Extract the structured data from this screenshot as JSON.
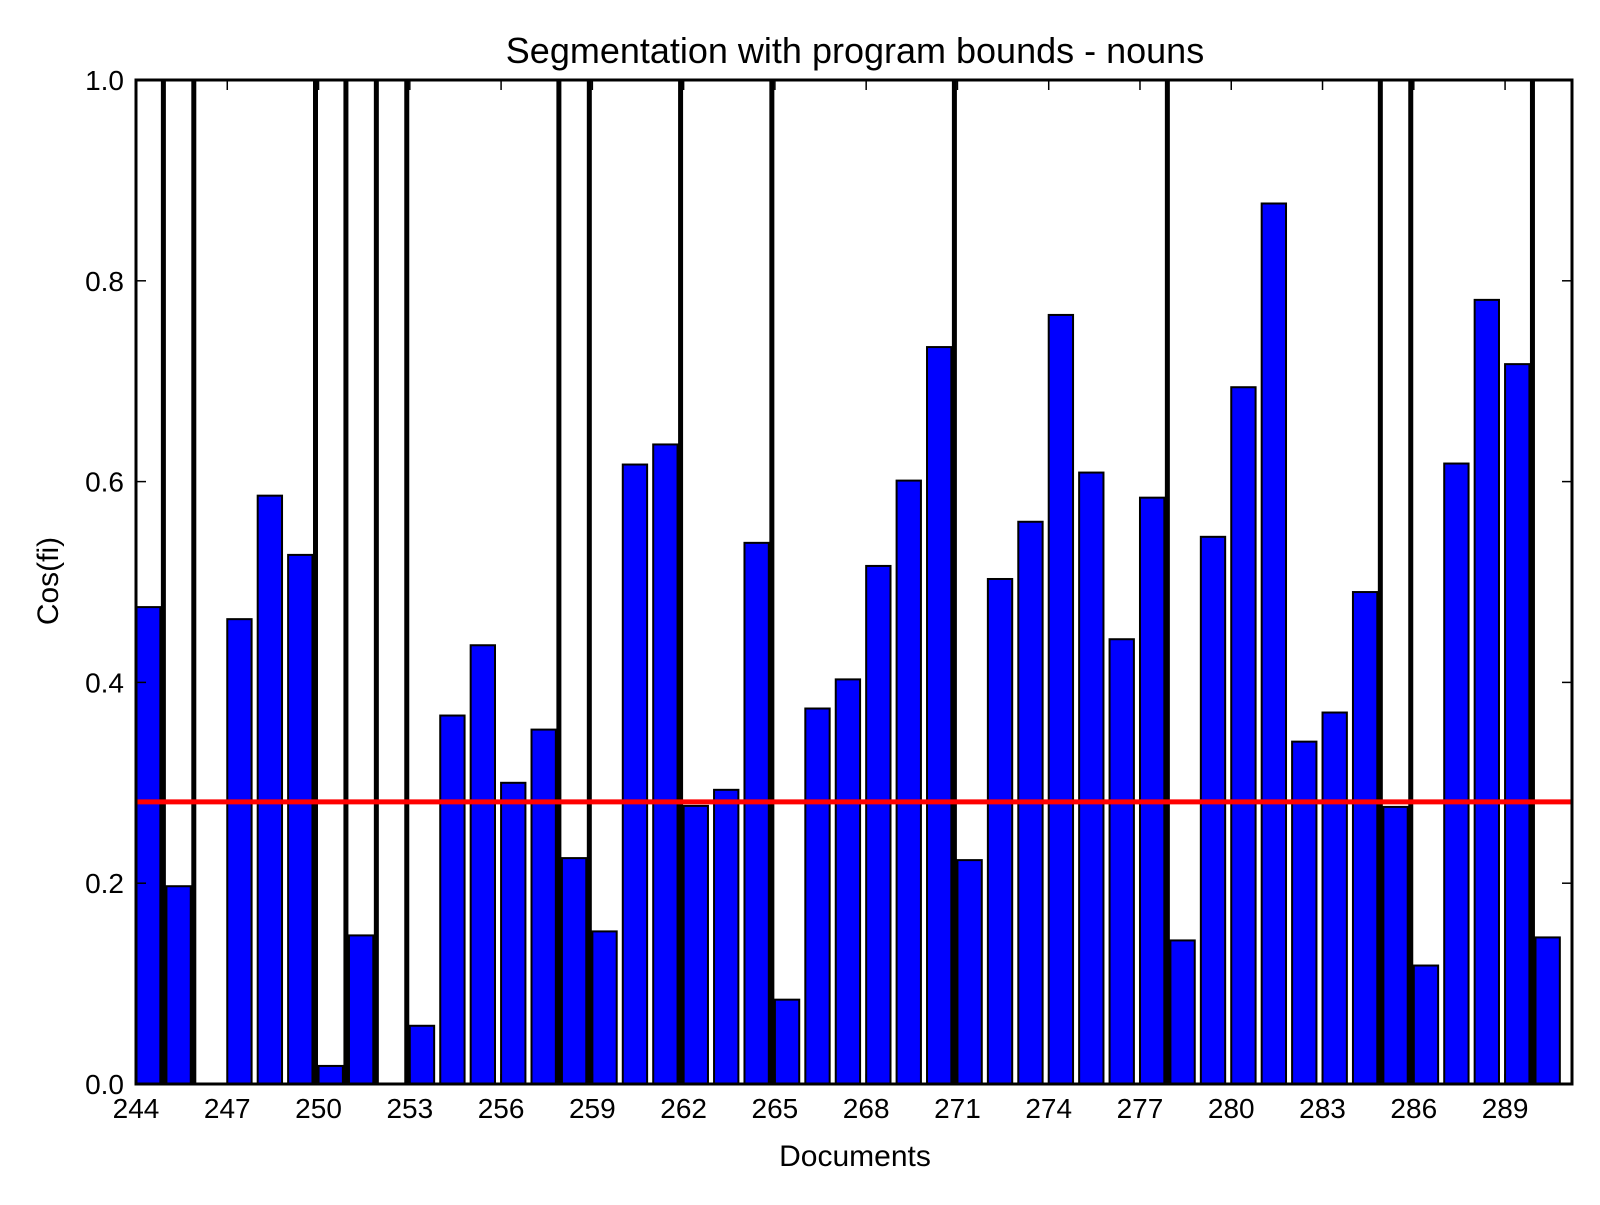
{
  "chart_data": {
    "type": "bar",
    "title": "Segmentation with program bounds - nouns",
    "xlabel": "Documents",
    "ylabel": "Cos(fi)",
    "xlim": [
      244,
      291.2
    ],
    "ylim": [
      0.0,
      1.0
    ],
    "grid": false,
    "legend": "none",
    "colors": {
      "bar_fill": "#0000ff",
      "bar_edge": "#000000",
      "threshold_line": "#ff0000",
      "boundary_line": "#000000",
      "axes_edge": "#000000",
      "background": "#ffffff"
    },
    "y_ticks": [
      {
        "value": 0.0,
        "label": "0.0"
      },
      {
        "value": 0.2,
        "label": "0.2"
      },
      {
        "value": 0.4,
        "label": "0.4"
      },
      {
        "value": 0.6,
        "label": "0.6"
      },
      {
        "value": 0.8,
        "label": "0.8"
      },
      {
        "value": 1.0,
        "label": "1.0"
      }
    ],
    "x_ticks": [
      {
        "value": 244,
        "label": "244"
      },
      {
        "value": 247,
        "label": "247"
      },
      {
        "value": 250,
        "label": "250"
      },
      {
        "value": 253,
        "label": "253"
      },
      {
        "value": 256,
        "label": "256"
      },
      {
        "value": 259,
        "label": "259"
      },
      {
        "value": 262,
        "label": "262"
      },
      {
        "value": 265,
        "label": "265"
      },
      {
        "value": 268,
        "label": "268"
      },
      {
        "value": 271,
        "label": "271"
      },
      {
        "value": 274,
        "label": "274"
      },
      {
        "value": 277,
        "label": "277"
      },
      {
        "value": 280,
        "label": "280"
      },
      {
        "value": 283,
        "label": "283"
      },
      {
        "value": 286,
        "label": "286"
      },
      {
        "value": 289,
        "label": "289"
      }
    ],
    "documents": [
      244,
      245,
      246,
      247,
      248,
      249,
      250,
      251,
      252,
      253,
      254,
      255,
      256,
      257,
      258,
      259,
      260,
      261,
      262,
      263,
      264,
      265,
      266,
      267,
      268,
      269,
      270,
      271,
      272,
      273,
      274,
      275,
      276,
      277,
      278,
      279,
      280,
      281,
      282,
      283,
      284,
      285,
      286,
      287,
      288,
      289,
      290,
      291
    ],
    "values": [
      0.475,
      0.197,
      0.0,
      0.463,
      0.586,
      0.527,
      0.018,
      0.148,
      0.0,
      0.058,
      0.367,
      0.437,
      0.3,
      0.353,
      0.225,
      0.152,
      0.617,
      0.637,
      0.277,
      0.293,
      0.539,
      0.084,
      0.374,
      0.403,
      0.516,
      0.601,
      0.734,
      0.223,
      0.503,
      0.56,
      0.766,
      0.609,
      0.443,
      0.584,
      0.143,
      0.545,
      0.694,
      0.877,
      0.341,
      0.37,
      0.49,
      0.276,
      0.118,
      0.618,
      0.781,
      0.717,
      0.146,
      0.0
    ],
    "bar_width": 0.8,
    "threshold": 0.281,
    "program_bounds": [
      245,
      246,
      250,
      251,
      252,
      253,
      258,
      259,
      262,
      265,
      271,
      278,
      285,
      286,
      290
    ]
  }
}
